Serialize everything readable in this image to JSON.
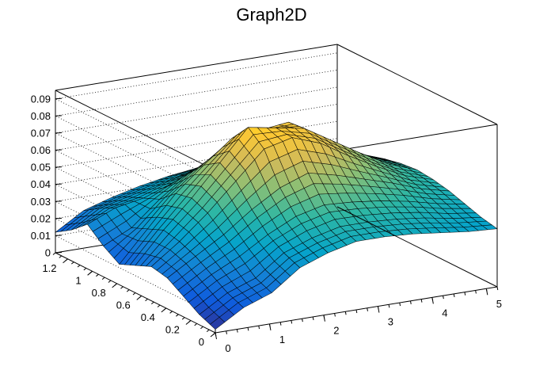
{
  "chart_data": {
    "type": "surface",
    "title": "Graph2D",
    "xlabel": "",
    "ylabel": "",
    "zlabel": "",
    "xlim": [
      0,
      5.2
    ],
    "ylim": [
      0,
      1.3
    ],
    "zlim": [
      0,
      0.095
    ],
    "x_ticks": [
      0,
      1,
      2,
      3,
      4,
      5
    ],
    "y_ticks": [
      0,
      0.2,
      0.4,
      0.6,
      0.8,
      1,
      1.2
    ],
    "z_ticks": [
      0,
      0.01,
      0.02,
      0.03,
      0.04,
      0.05,
      0.06,
      0.07,
      0.08,
      0.09
    ],
    "x_tick_labels": [
      "0",
      "1",
      "2",
      "3",
      "4",
      "5"
    ],
    "y_tick_labels": [
      "0",
      "0.2",
      "0.4",
      "0.6",
      "0.8",
      "1",
      "1.2"
    ],
    "z_tick_labels": [
      "0",
      "0.01",
      "0.02",
      "0.03",
      "0.04",
      "0.05",
      "0.06",
      "0.07",
      "0.08",
      "0.09"
    ],
    "colormap": [
      "#352a87",
      "#0f5cdd",
      "#1481d6",
      "#06a4ca",
      "#2eb7a4",
      "#87bf77",
      "#d1bb59",
      "#fec832",
      "#f9fb0e"
    ],
    "grid": true,
    "surface": {
      "x": [
        0,
        0.52,
        1.04,
        1.56,
        2.08,
        2.6,
        3.12,
        3.64,
        4.16,
        4.68,
        5.2
      ],
      "y": [
        0,
        0.13,
        0.26,
        0.39,
        0.52,
        0.65,
        0.78,
        0.91,
        1.04,
        1.17,
        1.3
      ],
      "z": [
        [
          0.002,
          0.012,
          0.018,
          0.03,
          0.036,
          0.04,
          0.04,
          0.039,
          0.037,
          0.035,
          0.034
        ],
        [
          0.006,
          0.016,
          0.022,
          0.034,
          0.04,
          0.044,
          0.044,
          0.043,
          0.041,
          0.038,
          0.036
        ],
        [
          0.012,
          0.022,
          0.03,
          0.04,
          0.048,
          0.052,
          0.051,
          0.049,
          0.046,
          0.042,
          0.039
        ],
        [
          0.018,
          0.028,
          0.038,
          0.05,
          0.06,
          0.066,
          0.062,
          0.057,
          0.052,
          0.046,
          0.042
        ],
        [
          0.02,
          0.032,
          0.046,
          0.062,
          0.078,
          0.082,
          0.076,
          0.066,
          0.057,
          0.049,
          0.044
        ],
        [
          0.016,
          0.034,
          0.05,
          0.068,
          0.086,
          0.083,
          0.08,
          0.07,
          0.06,
          0.051,
          0.045
        ],
        [
          0.012,
          0.03,
          0.048,
          0.062,
          0.075,
          0.077,
          0.079,
          0.069,
          0.059,
          0.05,
          0.044
        ],
        [
          0.018,
          0.026,
          0.04,
          0.052,
          0.06,
          0.065,
          0.068,
          0.062,
          0.055,
          0.048,
          0.042
        ],
        [
          0.026,
          0.033,
          0.036,
          0.042,
          0.048,
          0.052,
          0.056,
          0.054,
          0.049,
          0.044,
          0.039
        ],
        [
          0.018,
          0.028,
          0.032,
          0.036,
          0.04,
          0.044,
          0.046,
          0.045,
          0.042,
          0.039,
          0.036
        ],
        [
          0.012,
          0.022,
          0.027,
          0.031,
          0.034,
          0.036,
          0.038,
          0.037,
          0.035,
          0.033,
          0.031
        ]
      ]
    }
  }
}
